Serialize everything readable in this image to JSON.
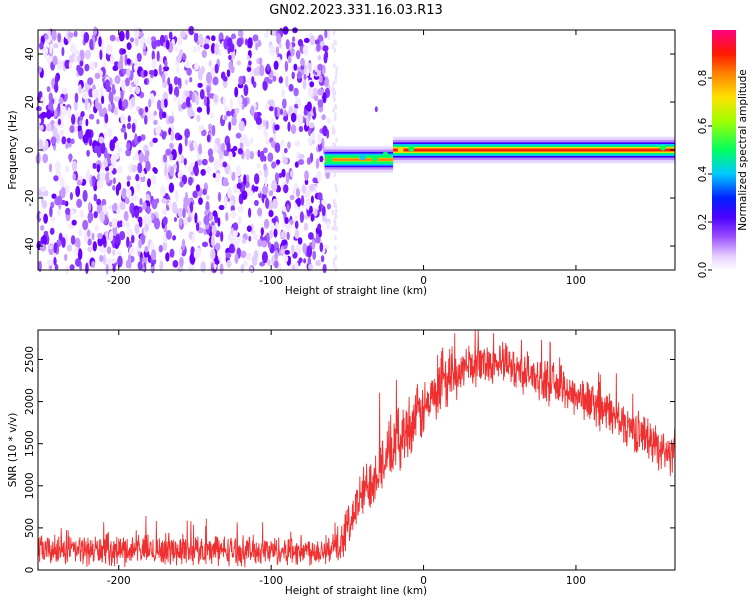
{
  "figure_title": "GN02.2023.331.16.03.R13",
  "chart_data": [
    {
      "type": "heatmap",
      "name": "spectrogram",
      "xlabel": "Height of straight line (km)",
      "ylabel": "Frequency (Hz)",
      "xlim": [
        -253,
        165
      ],
      "ylim": [
        -50,
        50
      ],
      "x_ticks": [
        -200,
        -100,
        0,
        100
      ],
      "y_ticks": [
        -40,
        -20,
        0,
        20,
        40
      ],
      "colorbar": {
        "label": "Normalized spectral amplitude",
        "range": [
          0,
          1
        ],
        "ticks": [
          "0.0",
          "0.2",
          "0.4",
          "0.6",
          "0.8"
        ],
        "colormap": [
          "#ffffff",
          "#c8a0ff",
          "#6a00ff",
          "#0000ff",
          "#00e0ff",
          "#00ff00",
          "#ffff00",
          "#ff8000",
          "#ff0000",
          "#ff0080"
        ]
      },
      "regions": [
        {
          "description_x": [
            -253,
            -60
          ],
          "signal": "diffuse noise, amplitude 0.0-0.3 over full frequency range"
        },
        {
          "x": [
            -65,
            -20
          ],
          "centre_frequency_hz": -4,
          "peak_amplitude": 0.7
        },
        {
          "x": [
            -20,
            165
          ],
          "centre_frequency_hz": 0,
          "peak_amplitude": 0.95
        }
      ],
      "isolated_feature": {
        "x": -31,
        "frequency_hz": 17
      }
    },
    {
      "type": "line",
      "name": "snr",
      "xlabel": "Height of straight line (km)",
      "ylabel": "SNR (10 * v/v)",
      "xlim": [
        -253,
        165
      ],
      "ylim": [
        0,
        2850
      ],
      "x_ticks": [
        -200,
        -100,
        0,
        100
      ],
      "y_ticks": [
        0,
        500,
        1000,
        1500,
        2000,
        2500
      ],
      "series": [
        {
          "color": "#f03030",
          "x": [
            -253,
            -220,
            -180,
            -140,
            -100,
            -70,
            -55,
            -50,
            -40,
            -30,
            -20,
            -10,
            0,
            10,
            20,
            30,
            40,
            50,
            60,
            70,
            80,
            90,
            100,
            110,
            120,
            130,
            140,
            150,
            160,
            165
          ],
          "y": [
            230,
            235,
            240,
            235,
            230,
            235,
            250,
            520,
            900,
            1200,
            1450,
            1700,
            1900,
            2100,
            2300,
            2420,
            2470,
            2460,
            2400,
            2320,
            2240,
            2170,
            2080,
            1990,
            1880,
            1760,
            1640,
            1520,
            1400,
            1330
          ],
          "noise_amplitude": [
            210,
            210,
            215,
            210,
            205,
            210,
            215,
            300,
            380,
            420,
            440,
            440,
            420,
            380,
            330,
            300,
            290,
            290,
            290,
            290,
            290,
            290,
            300,
            300,
            300,
            300,
            300,
            300,
            300,
            300
          ]
        }
      ]
    }
  ]
}
